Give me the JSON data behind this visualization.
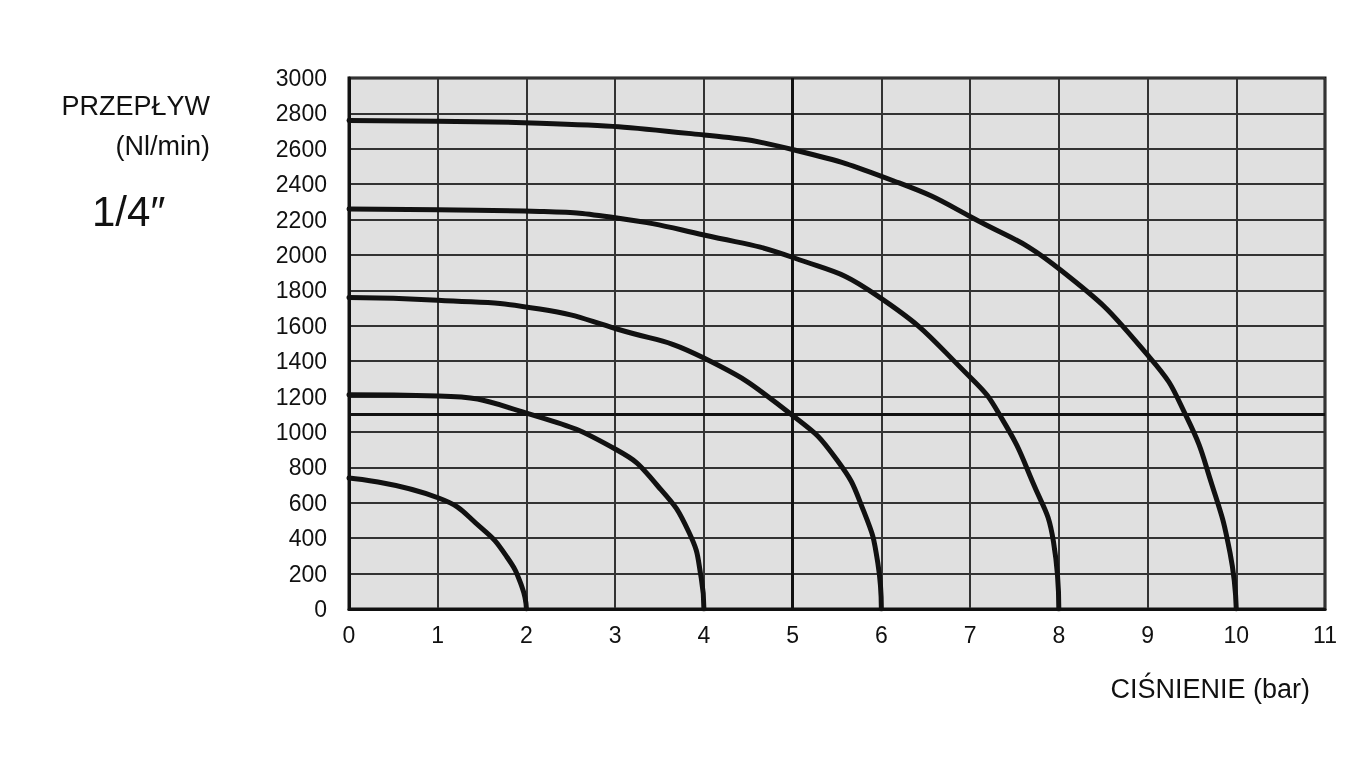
{
  "chart_data": {
    "type": "line",
    "title": "1/4″",
    "ylabel": "PRZEPŁYW (Nl/min)",
    "xlabel": "CIŚNIENIE (bar)",
    "series": [
      {
        "color": "#111111",
        "x": [
          0,
          1,
          2.15,
          4.0,
          5.02,
          6.2,
          7.01,
          8.02,
          9.03,
          9.44,
          9.73,
          9.93,
          10
        ],
        "values": [
          2760,
          2755,
          2745,
          2678,
          2593,
          2407,
          2215,
          1915,
          1418,
          1085,
          695,
          316,
          0
        ]
      },
      {
        "color": "#111111",
        "x": [
          0,
          1,
          2.15,
          3.02,
          4.0,
          5.02,
          5.96,
          7.01,
          7.36,
          7.7,
          7.94,
          8
        ],
        "values": [
          2260,
          2255,
          2246,
          2209,
          2113,
          1983,
          1768,
          1305,
          1074,
          723,
          379,
          0
        ]
      },
      {
        "color": "#111111",
        "x": [
          0,
          1,
          2.15,
          3.02,
          4.0,
          5.02,
          5.5,
          5.8,
          5.96,
          6
        ],
        "values": [
          1760,
          1745,
          1695,
          1582,
          1418,
          1085,
          842,
          554,
          260,
          0
        ]
      },
      {
        "color": "#111111",
        "x": [
          0,
          1.01,
          2.0,
          3.02,
          3.48,
          3.83,
          3.97,
          4
        ],
        "values": [
          1210,
          1203,
          1107,
          898,
          695,
          435,
          175,
          0
        ]
      },
      {
        "color": "#111111",
        "x": [
          0,
          1.01,
          1.49,
          1.78,
          1.95,
          2
        ],
        "values": [
          740,
          627,
          458,
          294,
          124,
          0
        ]
      }
    ],
    "xlim": [
      0,
      11
    ],
    "xticks": [
      0,
      1,
      2,
      3,
      4,
      5,
      6,
      7,
      8,
      9,
      10,
      11
    ],
    "ylim": [
      0,
      3000
    ],
    "yticks": [
      0,
      200,
      400,
      600,
      800,
      1000,
      1200,
      1400,
      1600,
      1800,
      2000,
      2200,
      2400,
      2600,
      2800,
      3000
    ],
    "ref_lines": [
      {
        "axis": "x",
        "value": 5
      },
      {
        "axis": "y",
        "value": 1100
      }
    ],
    "grid": true,
    "marker": "none",
    "line_style": "solid"
  }
}
